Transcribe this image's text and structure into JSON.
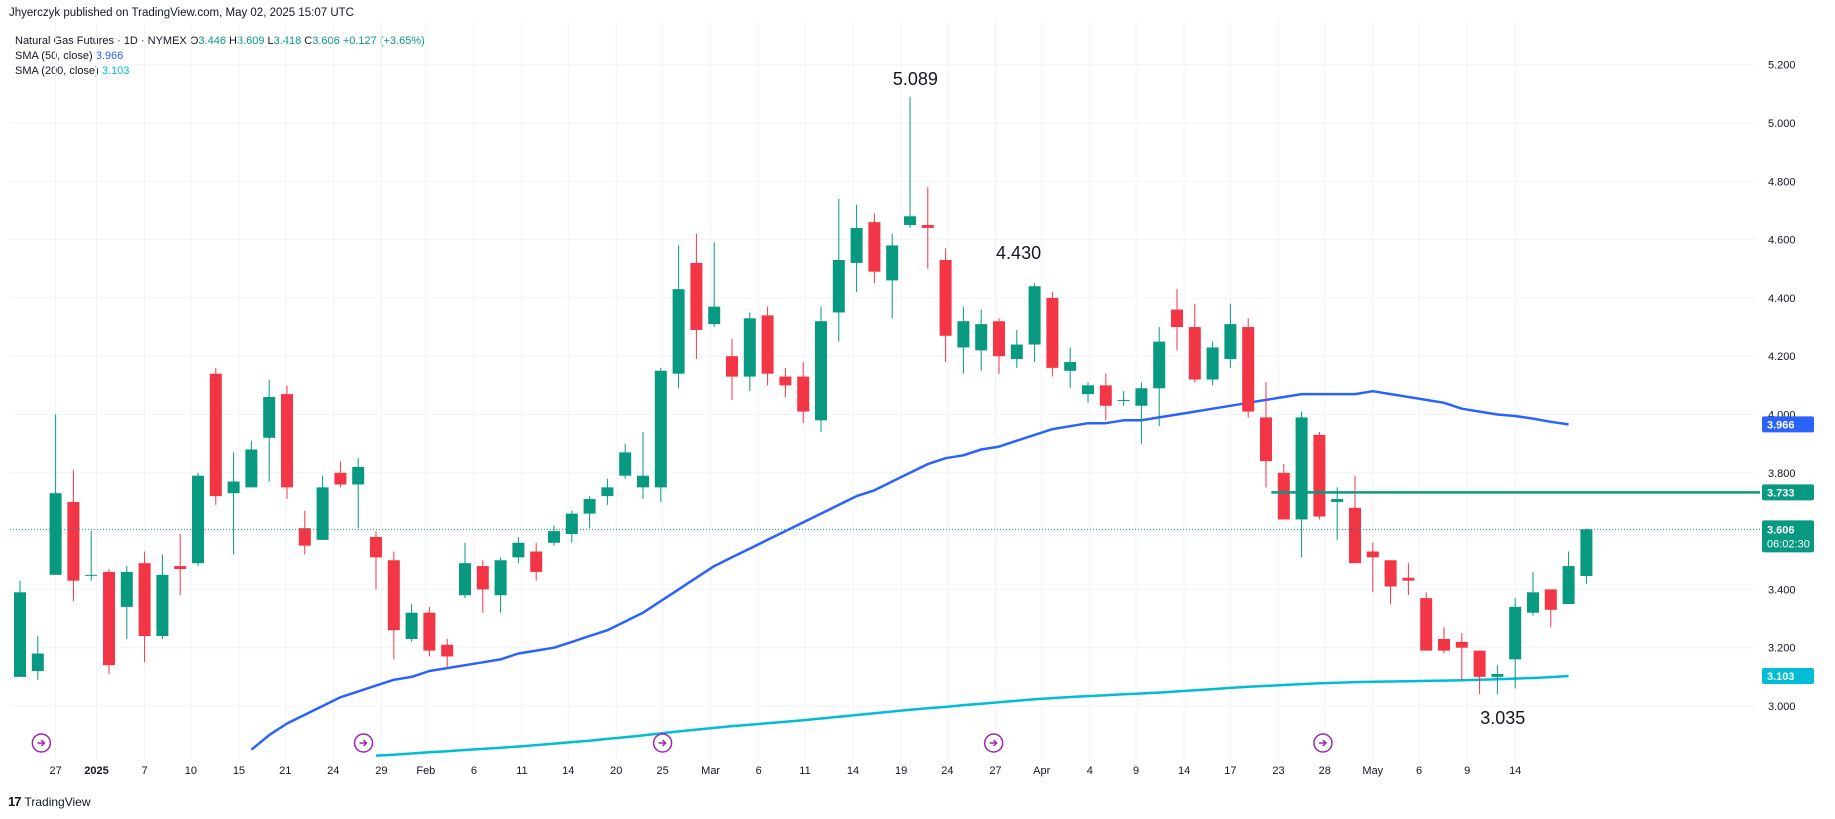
{
  "header": {
    "published": "Jhyerczyk published on TradingView.com, May 02, 2025 15:07 UTC"
  },
  "legend": {
    "symbol": "Natural Gas Futures · 1D · NYMEX",
    "o_label": "O",
    "o": "3.446",
    "h_label": "H",
    "h": "3.609",
    "l_label": "L",
    "l": "3.418",
    "c_label": "C",
    "c": "3.606",
    "change": "+0.127 (+3.65%)",
    "sma50_label": "SMA (50, close)",
    "sma50": "3.966",
    "sma200_label": "SMA (200, close)",
    "sma200": "3.103"
  },
  "footer": {
    "brand": "TradingView",
    "logo": "17"
  },
  "colors": {
    "up": "#089981",
    "down": "#f23645",
    "sma50": "#2962ff",
    "sma200": "#00bcd4",
    "level": "#089981"
  },
  "chart_data": {
    "type": "candlestick",
    "title": "Natural Gas Futures · 1D · NYMEX",
    "ylim": [
      2.92,
      5.25
    ],
    "yticks": [
      "5.200",
      "5.000",
      "4.800",
      "4.600",
      "4.400",
      "4.200",
      "4.000",
      "3.800",
      "3.600",
      "3.400",
      "3.200",
      "3.000"
    ],
    "xtick_labels": [
      "27",
      "2025",
      "7",
      "10",
      "15",
      "21",
      "24",
      "29",
      "Feb",
      "6",
      "11",
      "14",
      "20",
      "25",
      "Mar",
      "6",
      "11",
      "14",
      "19",
      "24",
      "27",
      "Apr",
      "4",
      "9",
      "14",
      "17",
      "23",
      "28",
      "May",
      "6",
      "9",
      "14"
    ],
    "candles": [
      {
        "o": 3.1,
        "h": 3.43,
        "l": 3.1,
        "c": 3.39
      },
      {
        "o": 3.12,
        "h": 3.24,
        "l": 3.09,
        "c": 3.18
      },
      {
        "o": 3.45,
        "h": 4.0,
        "l": 3.45,
        "c": 3.73
      },
      {
        "o": 3.7,
        "h": 3.81,
        "l": 3.36,
        "c": 3.43
      },
      {
        "o": 3.45,
        "h": 3.6,
        "l": 3.43,
        "c": 3.45
      },
      {
        "o": 3.46,
        "h": 3.47,
        "l": 3.11,
        "c": 3.14
      },
      {
        "o": 3.34,
        "h": 3.48,
        "l": 3.23,
        "c": 3.46
      },
      {
        "o": 3.49,
        "h": 3.53,
        "l": 3.15,
        "c": 3.24
      },
      {
        "o": 3.24,
        "h": 3.52,
        "l": 3.23,
        "c": 3.45
      },
      {
        "o": 3.48,
        "h": 3.59,
        "l": 3.38,
        "c": 3.47
      },
      {
        "o": 3.49,
        "h": 3.8,
        "l": 3.48,
        "c": 3.79
      },
      {
        "o": 4.14,
        "h": 4.16,
        "l": 3.69,
        "c": 3.72
      },
      {
        "o": 3.73,
        "h": 3.87,
        "l": 3.52,
        "c": 3.77
      },
      {
        "o": 3.75,
        "h": 3.91,
        "l": 3.75,
        "c": 3.88
      },
      {
        "o": 3.92,
        "h": 4.12,
        "l": 3.77,
        "c": 4.06
      },
      {
        "o": 4.07,
        "h": 4.1,
        "l": 3.71,
        "c": 3.75
      },
      {
        "o": 3.61,
        "h": 3.67,
        "l": 3.52,
        "c": 3.55
      },
      {
        "o": 3.57,
        "h": 3.79,
        "l": 3.57,
        "c": 3.75
      },
      {
        "o": 3.8,
        "h": 3.84,
        "l": 3.75,
        "c": 3.76
      },
      {
        "o": 3.76,
        "h": 3.85,
        "l": 3.61,
        "c": 3.82
      },
      {
        "o": 3.58,
        "h": 3.6,
        "l": 3.4,
        "c": 3.51
      },
      {
        "o": 3.5,
        "h": 3.53,
        "l": 3.16,
        "c": 3.26
      },
      {
        "o": 3.23,
        "h": 3.35,
        "l": 3.22,
        "c": 3.32
      },
      {
        "o": 3.32,
        "h": 3.34,
        "l": 3.17,
        "c": 3.19
      },
      {
        "o": 3.21,
        "h": 3.23,
        "l": 3.13,
        "c": 3.17
      },
      {
        "o": 3.38,
        "h": 3.56,
        "l": 3.37,
        "c": 3.49
      },
      {
        "o": 3.48,
        "h": 3.5,
        "l": 3.32,
        "c": 3.4
      },
      {
        "o": 3.38,
        "h": 3.51,
        "l": 3.32,
        "c": 3.5
      },
      {
        "o": 3.51,
        "h": 3.58,
        "l": 3.49,
        "c": 3.56
      },
      {
        "o": 3.53,
        "h": 3.56,
        "l": 3.43,
        "c": 3.46
      },
      {
        "o": 3.56,
        "h": 3.62,
        "l": 3.55,
        "c": 3.6
      },
      {
        "o": 3.59,
        "h": 3.67,
        "l": 3.56,
        "c": 3.66
      },
      {
        "o": 3.66,
        "h": 3.72,
        "l": 3.61,
        "c": 3.71
      },
      {
        "o": 3.72,
        "h": 3.78,
        "l": 3.69,
        "c": 3.75
      },
      {
        "o": 3.79,
        "h": 3.9,
        "l": 3.78,
        "c": 3.87
      },
      {
        "o": 3.75,
        "h": 3.94,
        "l": 3.71,
        "c": 3.79
      },
      {
        "o": 3.75,
        "h": 4.16,
        "l": 3.7,
        "c": 4.15
      },
      {
        "o": 4.14,
        "h": 4.58,
        "l": 4.09,
        "c": 4.43
      },
      {
        "o": 4.52,
        "h": 4.62,
        "l": 4.19,
        "c": 4.29
      },
      {
        "o": 4.31,
        "h": 4.59,
        "l": 4.3,
        "c": 4.37
      },
      {
        "o": 4.2,
        "h": 4.26,
        "l": 4.05,
        "c": 4.13
      },
      {
        "o": 4.13,
        "h": 4.35,
        "l": 4.08,
        "c": 4.33
      },
      {
        "o": 4.34,
        "h": 4.37,
        "l": 4.1,
        "c": 4.14
      },
      {
        "o": 4.13,
        "h": 4.16,
        "l": 4.06,
        "c": 4.1
      },
      {
        "o": 4.13,
        "h": 4.18,
        "l": 3.97,
        "c": 4.01
      },
      {
        "o": 3.98,
        "h": 4.37,
        "l": 3.94,
        "c": 4.32
      },
      {
        "o": 4.35,
        "h": 4.74,
        "l": 4.25,
        "c": 4.53
      },
      {
        "o": 4.52,
        "h": 4.72,
        "l": 4.42,
        "c": 4.64
      },
      {
        "o": 4.66,
        "h": 4.69,
        "l": 4.45,
        "c": 4.49
      },
      {
        "o": 4.46,
        "h": 4.62,
        "l": 4.33,
        "c": 4.58
      },
      {
        "o": 4.65,
        "h": 5.09,
        "l": 4.64,
        "c": 4.68
      },
      {
        "o": 4.65,
        "h": 4.78,
        "l": 4.5,
        "c": 4.64
      },
      {
        "o": 4.53,
        "h": 4.57,
        "l": 4.18,
        "c": 4.27
      },
      {
        "o": 4.23,
        "h": 4.37,
        "l": 4.14,
        "c": 4.32
      },
      {
        "o": 4.22,
        "h": 4.36,
        "l": 4.15,
        "c": 4.31
      },
      {
        "o": 4.32,
        "h": 4.33,
        "l": 4.14,
        "c": 4.2
      },
      {
        "o": 4.19,
        "h": 4.29,
        "l": 4.16,
        "c": 4.24
      },
      {
        "o": 4.24,
        "h": 4.45,
        "l": 4.18,
        "c": 4.44
      },
      {
        "o": 4.4,
        "h": 4.42,
        "l": 4.13,
        "c": 4.16
      },
      {
        "o": 4.15,
        "h": 4.23,
        "l": 4.09,
        "c": 4.18
      },
      {
        "o": 4.07,
        "h": 4.11,
        "l": 4.04,
        "c": 4.1
      },
      {
        "o": 4.1,
        "h": 4.14,
        "l": 3.98,
        "c": 4.03
      },
      {
        "o": 4.05,
        "h": 4.08,
        "l": 4.03,
        "c": 4.05
      },
      {
        "o": 4.03,
        "h": 4.11,
        "l": 3.9,
        "c": 4.09
      },
      {
        "o": 4.09,
        "h": 4.3,
        "l": 3.96,
        "c": 4.25
      },
      {
        "o": 4.36,
        "h": 4.43,
        "l": 4.22,
        "c": 4.3
      },
      {
        "o": 4.3,
        "h": 4.38,
        "l": 4.11,
        "c": 4.12
      },
      {
        "o": 4.12,
        "h": 4.25,
        "l": 4.1,
        "c": 4.23
      },
      {
        "o": 4.19,
        "h": 4.38,
        "l": 4.16,
        "c": 4.31
      },
      {
        "o": 4.3,
        "h": 4.33,
        "l": 3.99,
        "c": 4.01
      },
      {
        "o": 3.99,
        "h": 4.11,
        "l": 3.75,
        "c": 3.84
      },
      {
        "o": 3.8,
        "h": 3.83,
        "l": 3.64,
        "c": 3.64
      },
      {
        "o": 3.64,
        "h": 4.01,
        "l": 3.51,
        "c": 3.99
      },
      {
        "o": 3.93,
        "h": 3.94,
        "l": 3.64,
        "c": 3.65
      },
      {
        "o": 3.7,
        "h": 3.75,
        "l": 3.57,
        "c": 3.71
      },
      {
        "o": 3.68,
        "h": 3.79,
        "l": 3.49,
        "c": 3.49
      },
      {
        "o": 3.53,
        "h": 3.56,
        "l": 3.39,
        "c": 3.51
      },
      {
        "o": 3.5,
        "h": 3.5,
        "l": 3.35,
        "c": 3.41
      },
      {
        "o": 3.44,
        "h": 3.49,
        "l": 3.38,
        "c": 3.43
      },
      {
        "o": 3.37,
        "h": 3.39,
        "l": 3.19,
        "c": 3.19
      },
      {
        "o": 3.23,
        "h": 3.27,
        "l": 3.18,
        "c": 3.19
      },
      {
        "o": 3.22,
        "h": 3.25,
        "l": 3.09,
        "c": 3.2
      },
      {
        "o": 3.19,
        "h": 3.19,
        "l": 3.04,
        "c": 3.1
      },
      {
        "o": 3.1,
        "h": 3.14,
        "l": 3.04,
        "c": 3.11
      },
      {
        "o": 3.16,
        "h": 3.37,
        "l": 3.06,
        "c": 3.34
      },
      {
        "o": 3.32,
        "h": 3.46,
        "l": 3.31,
        "c": 3.39
      },
      {
        "o": 3.4,
        "h": 3.4,
        "l": 3.27,
        "c": 3.33
      },
      {
        "o": 3.35,
        "h": 3.53,
        "l": 3.35,
        "c": 3.48
      },
      {
        "o": 3.446,
        "h": 3.609,
        "l": 3.418,
        "c": 3.606
      }
    ],
    "series": [
      {
        "name": "SMA (50, close)",
        "last": 3.966,
        "values": [
          null,
          null,
          null,
          null,
          null,
          null,
          null,
          null,
          null,
          null,
          null,
          null,
          null,
          2.85,
          2.9,
          2.94,
          2.97,
          3.0,
          3.03,
          3.05,
          3.07,
          3.09,
          3.1,
          3.12,
          3.13,
          3.14,
          3.15,
          3.16,
          3.18,
          3.19,
          3.2,
          3.22,
          3.24,
          3.26,
          3.29,
          3.32,
          3.36,
          3.4,
          3.44,
          3.48,
          3.51,
          3.54,
          3.57,
          3.6,
          3.63,
          3.66,
          3.69,
          3.72,
          3.74,
          3.77,
          3.8,
          3.83,
          3.85,
          3.86,
          3.88,
          3.89,
          3.91,
          3.93,
          3.95,
          3.96,
          3.97,
          3.97,
          3.98,
          3.98,
          3.99,
          4.0,
          4.01,
          4.02,
          4.03,
          4.04,
          4.05,
          4.06,
          4.07,
          4.07,
          4.07,
          4.07,
          4.08,
          4.07,
          4.06,
          4.05,
          4.04,
          4.02,
          4.01,
          4.0,
          3.995,
          3.986,
          3.975,
          3.966,
          null,
          null
        ]
      },
      {
        "name": "SMA (200, close)",
        "last": 3.103,
        "values": [
          null,
          null,
          null,
          null,
          null,
          null,
          null,
          null,
          null,
          null,
          null,
          null,
          null,
          null,
          null,
          null,
          null,
          null,
          null,
          null,
          2.83,
          2.833,
          2.837,
          2.841,
          2.845,
          2.849,
          2.853,
          2.857,
          2.861,
          2.866,
          2.871,
          2.876,
          2.881,
          2.887,
          2.893,
          2.899,
          2.906,
          2.913,
          2.919,
          2.925,
          2.931,
          2.936,
          2.941,
          2.946,
          2.951,
          2.957,
          2.963,
          2.969,
          2.975,
          2.981,
          2.987,
          2.992,
          2.997,
          3.003,
          3.008,
          3.013,
          3.018,
          3.023,
          3.027,
          3.031,
          3.034,
          3.037,
          3.04,
          3.043,
          3.046,
          3.05,
          3.054,
          3.058,
          3.062,
          3.066,
          3.069,
          3.072,
          3.075,
          3.078,
          3.08,
          3.082,
          3.083,
          3.084,
          3.085,
          3.086,
          3.087,
          3.088,
          3.09,
          3.092,
          3.094,
          3.096,
          3.099,
          3.103,
          null,
          null
        ]
      }
    ],
    "last_close": 3.606,
    "countdown": "06:02:30",
    "level": 3.733,
    "level_label": "3.733",
    "annotations": [
      "5.089",
      "4.430",
      "3.035"
    ]
  }
}
